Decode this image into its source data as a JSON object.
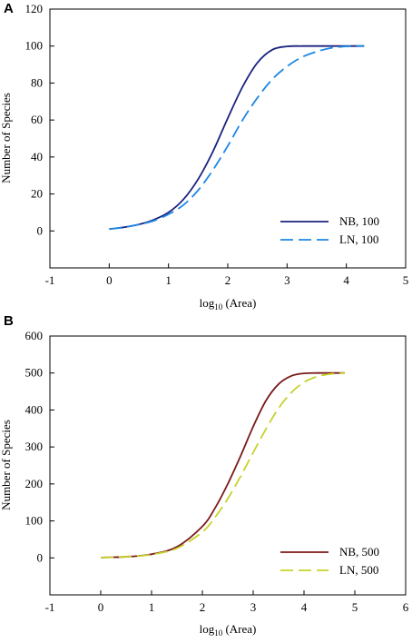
{
  "chart_data": [
    {
      "panel_label": "A",
      "type": "line",
      "xlabel": "log",
      "xlabel_sub": "10",
      "xlabel_tail": " (Area)",
      "ylabel": "Number of Species",
      "xlim": [
        -1,
        5
      ],
      "ylim": [
        -20,
        120
      ],
      "xticks": [
        -1,
        0,
        1,
        2,
        3,
        4,
        5
      ],
      "yticks": [
        0,
        20,
        40,
        60,
        80,
        100,
        120
      ],
      "legend_position": "bottom-right",
      "series": [
        {
          "name": "NB, 100",
          "color": "#1a237e",
          "dash": "solid",
          "x": [
            0,
            0.25,
            0.5,
            0.75,
            1.0,
            1.25,
            1.5,
            1.75,
            2.0,
            2.25,
            2.5,
            2.75,
            3.0,
            3.25,
            3.5,
            3.75,
            4.0,
            4.3
          ],
          "y": [
            1,
            2,
            3.5,
            6,
            10,
            17,
            28,
            43,
            61,
            78,
            91,
            98,
            99.8,
            100,
            100,
            100,
            100,
            100
          ]
        },
        {
          "name": "LN, 100",
          "color": "#1e88e5",
          "dash": "long-dash",
          "x": [
            0,
            0.25,
            0.5,
            0.75,
            1.0,
            1.25,
            1.5,
            1.75,
            2.0,
            2.25,
            2.5,
            2.75,
            3.0,
            3.25,
            3.5,
            3.75,
            4.0,
            4.3
          ],
          "y": [
            1,
            2,
            3.5,
            5.5,
            9,
            14,
            22,
            33,
            46,
            60,
            72,
            82,
            89,
            94,
            97,
            99,
            99.8,
            100
          ]
        }
      ]
    },
    {
      "panel_label": "B",
      "type": "line",
      "xlabel": "log",
      "xlabel_sub": "10",
      "xlabel_tail": " (Area)",
      "ylabel": "Number of Species",
      "xlim": [
        -1,
        6
      ],
      "ylim": [
        -100,
        600
      ],
      "xticks": [
        -1,
        0,
        1,
        2,
        3,
        4,
        5,
        6
      ],
      "yticks": [
        0,
        100,
        200,
        300,
        400,
        500,
        600
      ],
      "legend_position": "bottom-right",
      "series": [
        {
          "name": "NB, 500",
          "color": "#7b1a1a",
          "dash": "solid",
          "x": [
            0,
            0.5,
            1.0,
            1.5,
            2.0,
            2.25,
            2.5,
            2.75,
            3.0,
            3.25,
            3.5,
            3.75,
            4.0,
            4.25,
            4.5,
            4.8
          ],
          "y": [
            1,
            3,
            10,
            30,
            85,
            135,
            200,
            275,
            355,
            425,
            470,
            492,
            499,
            500,
            500,
            500
          ]
        },
        {
          "name": "LN, 500",
          "color": "#c6d22a",
          "dash": "long-dash",
          "x": [
            0,
            0.5,
            1.0,
            1.5,
            2.0,
            2.25,
            2.5,
            2.75,
            3.0,
            3.25,
            3.5,
            3.75,
            4.0,
            4.25,
            4.5,
            4.8
          ],
          "y": [
            1,
            3,
            9,
            26,
            70,
            110,
            160,
            220,
            285,
            348,
            405,
            447,
            475,
            490,
            497,
            500
          ]
        }
      ]
    }
  ]
}
